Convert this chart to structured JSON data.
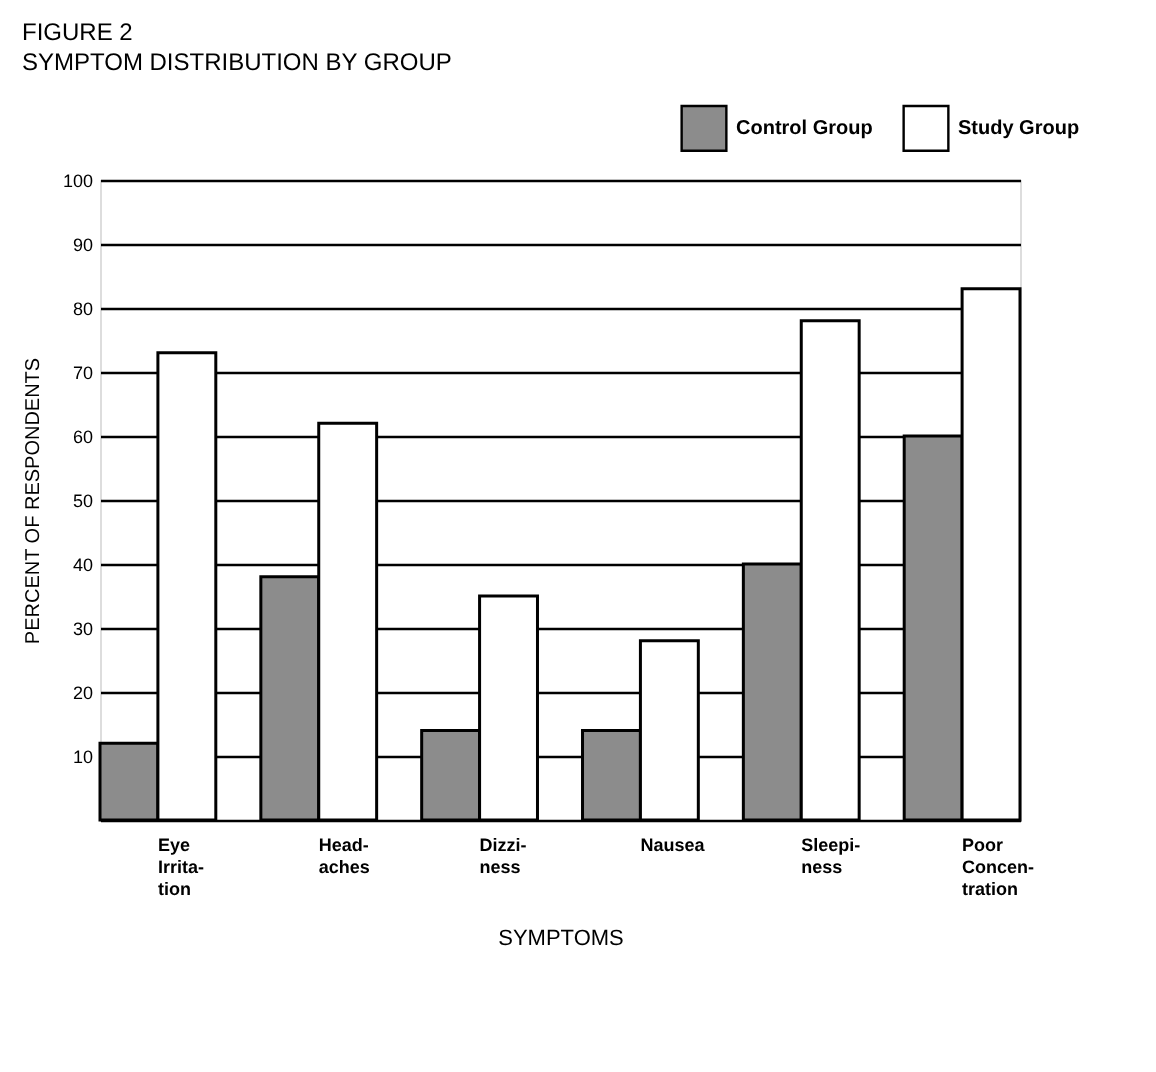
{
  "chart_data": {
    "type": "bar",
    "title": "FIGURE 2",
    "subtitle": "SYMPTOM DISTRIBUTION BY GROUP",
    "xlabel": "SYMPTOMS",
    "ylabel": "PERCENT OF RESPONDENTS",
    "categories": [
      "Eye\nIrrita-\ntion",
      "Head-\naches",
      "Dizzi-\nness",
      "Nausea",
      "Sleepi-\nness",
      "Poor\nConcen-\ntration"
    ],
    "series": [
      {
        "name": "Control Group",
        "color": "#8c8c8c",
        "values": [
          12,
          38,
          14,
          14,
          40,
          60
        ]
      },
      {
        "name": "Study Group",
        "color": "#ffffff",
        "values": [
          73,
          62,
          35,
          28,
          78,
          83
        ]
      }
    ],
    "ylim": [
      0,
      100
    ],
    "yticks": [
      {
        "value": 0,
        "label": null
      },
      10,
      20,
      30,
      40,
      50,
      60,
      70,
      80,
      90,
      100
    ],
    "grid": "y",
    "legend": "top right"
  }
}
